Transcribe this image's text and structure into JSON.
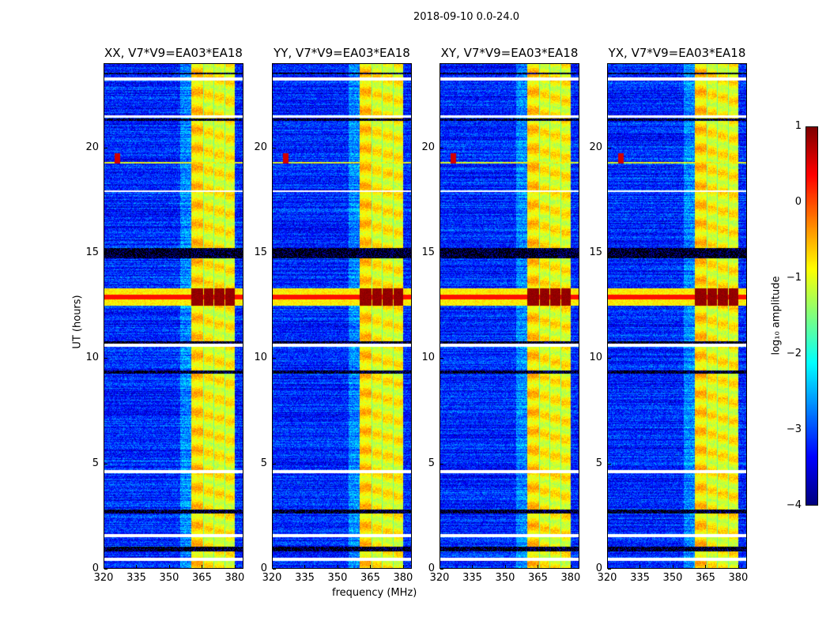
{
  "chart_data": {
    "type": "heatmap",
    "title": "2018-09-10 0.0-24.0",
    "xlabel": "frequency (MHz)",
    "ylabel": "UT (hours)",
    "xlim": [
      320,
      384
    ],
    "ylim": [
      0,
      24
    ],
    "xticks": [
      "320",
      "335",
      "350",
      "365",
      "380"
    ],
    "yticks": [
      "0",
      "5",
      "10",
      "15",
      "20"
    ],
    "panels": [
      {
        "title": "XX, V7*V9=EA03*EA18",
        "seed": 11
      },
      {
        "title": "YY, V7*V9=EA03*EA18",
        "seed": 23
      },
      {
        "title": "XY, V7*V9=EA03*EA18",
        "seed": 37
      },
      {
        "title": "YX, V7*V9=EA03*EA18",
        "seed": 51
      }
    ],
    "colorbar": {
      "label": "log₁₀ amplitude",
      "range": [
        -4,
        1
      ],
      "ticks": [
        "1",
        "0",
        "−1",
        "−2",
        "−3",
        "−4"
      ],
      "colormap": "jet"
    },
    "background_level": -3.2,
    "rfi_channels_mhz": [
      [
        360.4,
        365.8
      ],
      [
        366.0,
        370.5
      ],
      [
        370.7,
        375.5
      ],
      [
        375.8,
        380.3
      ]
    ],
    "rfi_level": -0.9,
    "strong_rfi_hours": [
      12.5,
      13.3
    ],
    "strong_rfi_level": 0.8,
    "flagged_hours": [
      [
        0.35,
        0.5
      ],
      [
        1.45,
        1.6
      ],
      [
        4.5,
        4.65
      ],
      [
        10.55,
        10.7
      ],
      [
        17.9,
        18.0
      ],
      [
        21.45,
        21.55
      ],
      [
        23.2,
        23.35
      ]
    ],
    "low_hours": [
      [
        0.8,
        1.0
      ],
      [
        2.6,
        2.8
      ],
      [
        9.25,
        9.4
      ],
      [
        10.7,
        10.8
      ],
      [
        14.75,
        15.25
      ],
      [
        21.3,
        21.4
      ],
      [
        23.5,
        23.6
      ]
    ],
    "spike": {
      "freq_mhz": 326,
      "hour": 19.5
    }
  }
}
